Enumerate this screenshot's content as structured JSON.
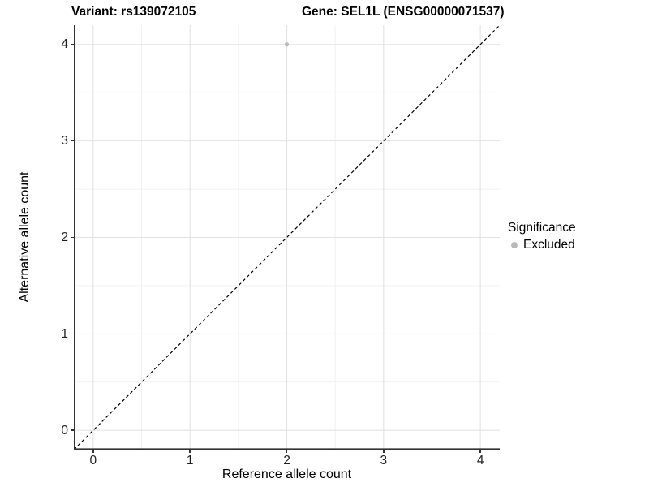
{
  "titles": {
    "variant": "Variant: rs139072105",
    "gene": "Gene: SEL1L (ENSG00000071537)"
  },
  "chart_data": {
    "type": "scatter",
    "title_left": "Variant: rs139072105",
    "title_right": "Gene: SEL1L (ENSG00000071537)",
    "xlabel": "Reference allele count",
    "ylabel": "Alternative allele count",
    "xlim": [
      -0.2,
      4.2
    ],
    "ylim": [
      -0.2,
      4.2
    ],
    "xticks": [
      0,
      1,
      2,
      3,
      4
    ],
    "yticks": [
      0,
      1,
      2,
      3,
      4
    ],
    "x_minor": [
      0.5,
      1.5,
      2.5,
      3.5
    ],
    "y_minor": [
      0.5,
      1.5,
      2.5,
      3.5
    ],
    "grid": true,
    "series": [
      {
        "name": "Excluded",
        "color": "#b9b9b9",
        "points": [
          {
            "x": 2,
            "y": 4
          }
        ]
      }
    ],
    "reference_line": {
      "type": "identity",
      "style": "dashed",
      "color": "#000000"
    },
    "legend": {
      "title": "Significance",
      "position": "right",
      "items": [
        {
          "label": "Excluded",
          "color": "#b9b9b9"
        }
      ]
    }
  },
  "colors": {
    "background": "#ffffff",
    "grid_major": "#e3e3e3",
    "grid_minor": "#f1f1f1",
    "axis_line": "#333333",
    "text": "#000000",
    "point": "#b9b9b9"
  }
}
